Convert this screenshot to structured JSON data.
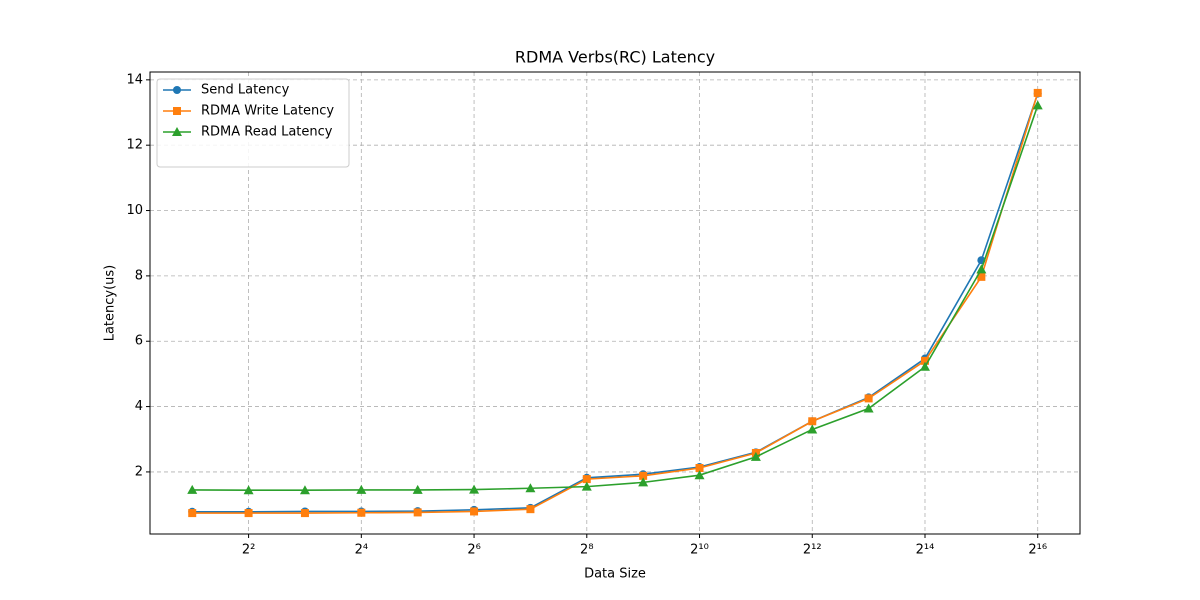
{
  "chart_data": {
    "type": "line",
    "title": "RDMA Verbs(RC) Latency",
    "x_label": "Data Size",
    "y_label": "Latency(us)",
    "x": [
      2,
      4,
      8,
      16,
      32,
      64,
      128,
      256,
      512,
      1024,
      2048,
      4096,
      8192,
      16384,
      32768,
      65536
    ],
    "series": [
      {
        "name": "Send Latency",
        "color": "#1f77b4",
        "marker": "circle",
        "values": [
          0.78,
          0.78,
          0.79,
          0.79,
          0.8,
          0.84,
          0.9,
          1.82,
          1.93,
          2.15,
          2.6,
          3.55,
          4.28,
          5.47,
          8.48,
          13.58
        ]
      },
      {
        "name": "RDMA Write Latency",
        "color": "#ff7f0e",
        "marker": "square",
        "values": [
          0.74,
          0.74,
          0.74,
          0.75,
          0.76,
          0.79,
          0.86,
          1.78,
          1.88,
          2.12,
          2.58,
          3.55,
          4.25,
          5.4,
          7.97,
          13.6
        ]
      },
      {
        "name": "RDMA Read Latency",
        "color": "#2ca02c",
        "marker": "triangle",
        "values": [
          1.45,
          1.44,
          1.44,
          1.45,
          1.45,
          1.46,
          1.5,
          1.55,
          1.68,
          1.9,
          2.46,
          3.3,
          3.94,
          5.22,
          8.2,
          13.22
        ]
      }
    ],
    "xscale": "log",
    "log_base": 2,
    "xlim": [
      1.19,
      110218
    ],
    "ylim": [
      0.1,
      14.24
    ],
    "xticks": [
      {
        "value": 4,
        "label": "2²"
      },
      {
        "value": 16,
        "label": "2⁴"
      },
      {
        "value": 64,
        "label": "2⁶"
      },
      {
        "value": 256,
        "label": "2⁸"
      },
      {
        "value": 1024,
        "label": "2¹⁰"
      },
      {
        "value": 4096,
        "label": "2¹²"
      },
      {
        "value": 16384,
        "label": "2¹⁴"
      },
      {
        "value": 65536,
        "label": "2¹⁶"
      }
    ],
    "yticks": [
      2,
      4,
      6,
      8,
      10,
      12,
      14
    ],
    "grid": true,
    "legend": "upper-left"
  }
}
